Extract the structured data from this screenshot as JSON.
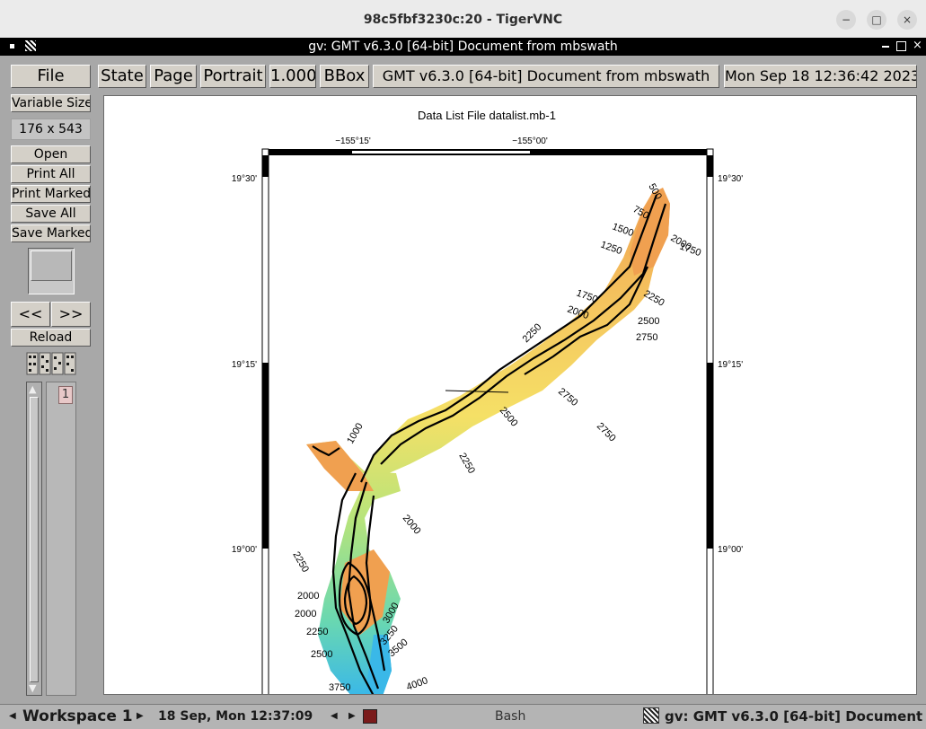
{
  "vnc": {
    "title": "98c5fbf3230c:20 - TigerVNC",
    "min": "−",
    "max": "□",
    "close": "×"
  },
  "gv": {
    "title": "gv: GMT v6.3.0 [64-bit] Document from mbswath",
    "file": "File",
    "state": "State",
    "page": "Page",
    "orientation": "Portrait",
    "scale": "1.000",
    "bbox": "BBox",
    "doc_title": "GMT v6.3.0 [64-bit] Document from mbswath",
    "date": "Mon Sep 18 12:36:42 2023",
    "size_mode": "Variable Size",
    "dims": "176 x 543",
    "open": "Open",
    "print_all": "Print All",
    "print_marked": "Print Marked",
    "save_all": "Save All",
    "save_marked": "Save Marked",
    "prev": "<<",
    "next": ">>",
    "reload": "Reload",
    "page_number": "1"
  },
  "map": {
    "title": "Data List File datalist.mb-1",
    "lon_labels": [
      "−155°15'",
      "−155°00'"
    ],
    "lat_labels": [
      "19°30'",
      "19°15'",
      "19°00'"
    ],
    "contours": [
      "500",
      "750",
      "1000",
      "1250",
      "1500",
      "1750",
      "2000",
      "2250",
      "2500",
      "2750",
      "3000",
      "3250",
      "3500",
      "3750",
      "4000"
    ]
  },
  "taskbar": {
    "workspace": "Workspace 1",
    "clock": "18 Sep, Mon 12:37:09",
    "app": "Bash",
    "window": "gv: GMT v6.3.0 [64-bit] Document f"
  },
  "colors": {
    "orange": "#f0a050",
    "yellow": "#f5e066",
    "green": "#a8e07a",
    "cyan": "#5ad8c8"
  }
}
